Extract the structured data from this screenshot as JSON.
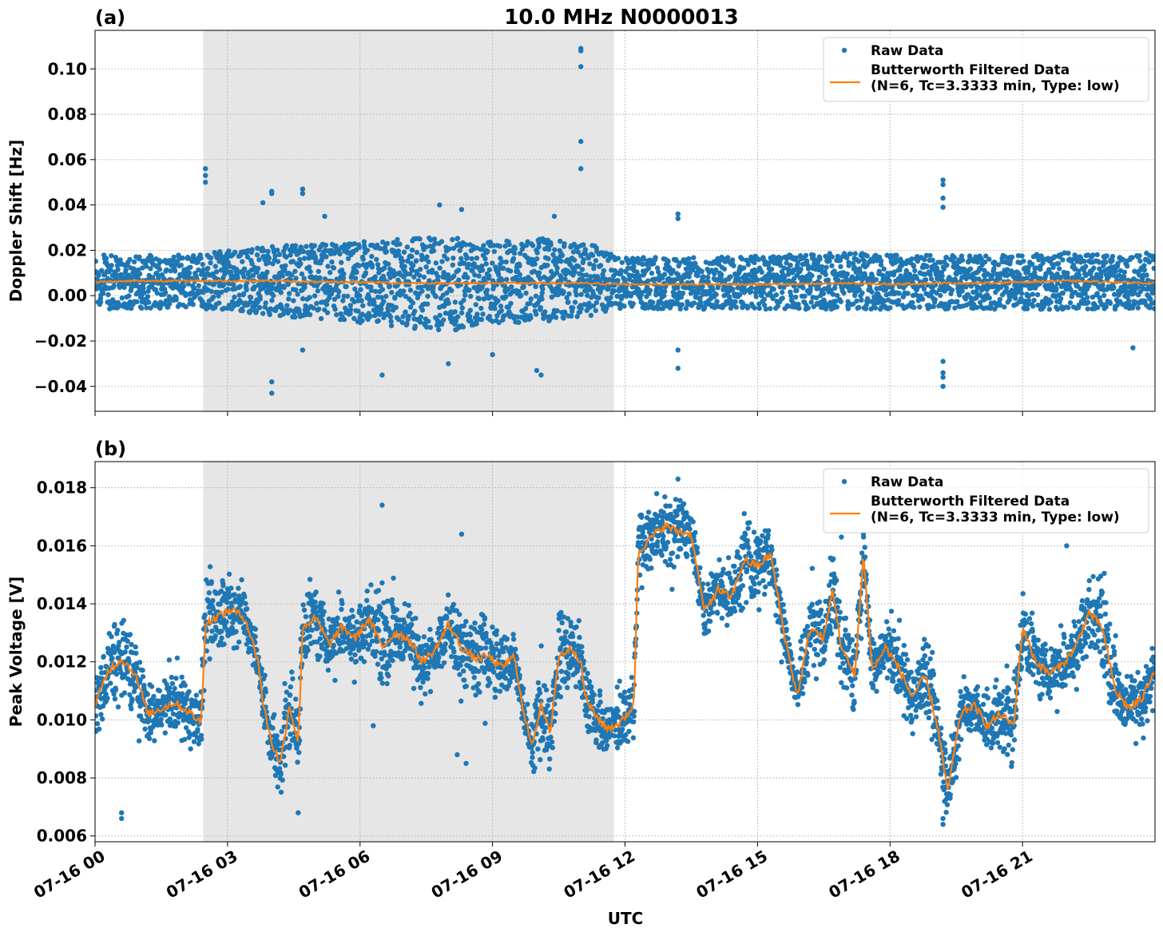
{
  "figure": {
    "title": "10.0 MHz N0000013",
    "xlabel": "UTC",
    "colors": {
      "raw": "#1f77b4",
      "filtered": "#ff7f0e",
      "shade": "#e6e6e6",
      "grid": "#b0b0b0"
    }
  },
  "chart_data": [
    {
      "type": "scatter",
      "panel_label": "(a)",
      "title": "10.0 MHz N0000013",
      "xlabel": "",
      "ylabel": "Doppler Shift [Hz]",
      "x_unit": "hours UTC on 07-16",
      "xlim": [
        0,
        24
      ],
      "ylim": [
        -0.051,
        0.117
      ],
      "x_ticks": [
        0,
        3,
        6,
        9,
        12,
        15,
        18,
        21
      ],
      "x_tick_labels": [
        "07-16 00",
        "07-16 03",
        "07-16 06",
        "07-16 09",
        "07-16 12",
        "07-16 15",
        "07-16 18",
        "07-16 21"
      ],
      "y_ticks": [
        -0.04,
        -0.02,
        0.0,
        0.02,
        0.04,
        0.06,
        0.08,
        0.1
      ],
      "y_tick_labels": [
        "−0.04",
        "−0.02",
        "0.00",
        "0.02",
        "0.04",
        "0.06",
        "0.08",
        "0.10"
      ],
      "grid": true,
      "shaded_region": [
        2.45,
        11.75
      ],
      "legend_position": "top-right",
      "legend": [
        {
          "label": "Raw Data",
          "kind": "marker"
        },
        {
          "label": "Butterworth Filtered Data",
          "label2": "(N=6, Tc=3.3333 min, Type: low)",
          "kind": "line"
        }
      ],
      "raw_band": {
        "x": [
          0,
          1,
          2,
          2.45,
          3,
          4,
          5,
          6,
          7,
          8,
          9,
          10,
          11,
          11.75,
          12,
          13,
          14,
          15,
          16,
          17,
          18,
          19,
          20,
          21,
          22,
          23,
          24
        ],
        "upper": [
          0.018,
          0.018,
          0.018,
          0.019,
          0.02,
          0.022,
          0.023,
          0.024,
          0.025,
          0.026,
          0.024,
          0.026,
          0.025,
          0.018,
          0.017,
          0.017,
          0.017,
          0.018,
          0.018,
          0.019,
          0.018,
          0.018,
          0.018,
          0.018,
          0.019,
          0.018,
          0.019
        ],
        "lower": [
          -0.006,
          -0.006,
          -0.005,
          -0.006,
          -0.006,
          -0.009,
          -0.01,
          -0.012,
          -0.014,
          -0.016,
          -0.012,
          -0.012,
          -0.01,
          -0.006,
          -0.006,
          -0.006,
          -0.006,
          -0.006,
          -0.006,
          -0.006,
          -0.006,
          -0.006,
          -0.006,
          -0.006,
          -0.006,
          -0.006,
          -0.006
        ]
      },
      "outliers": [
        [
          2.5,
          0.056
        ],
        [
          2.5,
          0.053
        ],
        [
          2.5,
          0.05
        ],
        [
          3.8,
          0.041
        ],
        [
          4.0,
          0.046
        ],
        [
          4.0,
          0.045
        ],
        [
          4.7,
          0.047
        ],
        [
          4.7,
          0.045
        ],
        [
          4.0,
          -0.038
        ],
        [
          4.0,
          -0.043
        ],
        [
          4.7,
          -0.024
        ],
        [
          6.5,
          -0.035
        ],
        [
          8.0,
          -0.03
        ],
        [
          9.0,
          -0.026
        ],
        [
          10.0,
          -0.033
        ],
        [
          10.1,
          -0.035
        ],
        [
          11.0,
          0.109
        ],
        [
          11.0,
          0.108
        ],
        [
          11.0,
          0.101
        ],
        [
          11.0,
          0.068
        ],
        [
          11.0,
          0.056
        ],
        [
          13.2,
          0.036
        ],
        [
          13.2,
          0.034
        ],
        [
          13.2,
          -0.024
        ],
        [
          13.2,
          -0.032
        ],
        [
          19.2,
          0.051
        ],
        [
          19.2,
          0.049
        ],
        [
          19.2,
          0.043
        ],
        [
          19.2,
          0.039
        ],
        [
          19.2,
          -0.029
        ],
        [
          19.2,
          -0.034
        ],
        [
          19.2,
          -0.036
        ],
        [
          19.2,
          -0.04
        ],
        [
          23.5,
          -0.023
        ],
        [
          5.2,
          0.035
        ],
        [
          7.8,
          0.04
        ],
        [
          8.3,
          0.038
        ],
        [
          10.4,
          0.035
        ]
      ],
      "filtered_line": {
        "x": [
          0,
          1,
          2,
          3,
          4,
          5,
          6,
          7,
          8,
          9,
          10,
          11,
          12,
          13,
          14,
          15,
          16,
          17,
          18,
          19,
          20,
          21,
          22,
          23,
          24
        ],
        "y": [
          0.006,
          0.0065,
          0.0065,
          0.0065,
          0.0065,
          0.006,
          0.006,
          0.0055,
          0.0055,
          0.0055,
          0.0055,
          0.0055,
          0.005,
          0.005,
          0.005,
          0.005,
          0.005,
          0.0055,
          0.005,
          0.0055,
          0.0055,
          0.006,
          0.0065,
          0.006,
          0.0055
        ]
      }
    },
    {
      "type": "scatter",
      "panel_label": "(b)",
      "title": "",
      "xlabel": "UTC",
      "ylabel": "Peak Voltage [V]",
      "x_unit": "hours UTC on 07-16",
      "xlim": [
        0,
        24
      ],
      "ylim": [
        0.0058,
        0.0189
      ],
      "x_ticks": [
        0,
        3,
        6,
        9,
        12,
        15,
        18,
        21
      ],
      "x_tick_labels": [
        "07-16 00",
        "07-16 03",
        "07-16 06",
        "07-16 09",
        "07-16 12",
        "07-16 15",
        "07-16 18",
        "07-16 21"
      ],
      "y_ticks": [
        0.006,
        0.008,
        0.01,
        0.012,
        0.014,
        0.016,
        0.018
      ],
      "y_tick_labels": [
        "0.006",
        "0.008",
        "0.010",
        "0.012",
        "0.014",
        "0.016",
        "0.018"
      ],
      "grid": true,
      "shaded_region": [
        2.45,
        11.75
      ],
      "legend_position": "top-right",
      "legend": [
        {
          "label": "Raw Data",
          "kind": "marker"
        },
        {
          "label": "Butterworth Filtered Data",
          "label2": "(N=6, Tc=3.3333 min, Type: low)",
          "kind": "line"
        }
      ],
      "filtered_line": {
        "x": [
          0,
          0.3,
          0.6,
          0.9,
          1.2,
          1.5,
          1.8,
          2.1,
          2.4,
          2.5,
          2.8,
          3.1,
          3.4,
          3.7,
          3.8,
          4.0,
          4.2,
          4.4,
          4.6,
          4.7,
          5.0,
          5.3,
          5.6,
          5.9,
          6.2,
          6.5,
          6.8,
          7.1,
          7.4,
          7.7,
          8.0,
          8.3,
          8.6,
          8.9,
          9.2,
          9.5,
          9.7,
          9.9,
          10.1,
          10.3,
          10.5,
          10.8,
          11.0,
          11.1,
          11.3,
          11.6,
          11.9,
          12.2,
          12.3,
          12.6,
          12.9,
          13.2,
          13.5,
          13.8,
          14.1,
          14.4,
          14.7,
          15.0,
          15.3,
          15.6,
          15.9,
          16.2,
          16.5,
          16.7,
          16.9,
          17.2,
          17.4,
          17.6,
          17.9,
          18.2,
          18.5,
          18.8,
          19.1,
          19.3,
          19.6,
          19.9,
          20.2,
          20.5,
          20.8,
          21.0,
          21.3,
          21.6,
          21.9,
          22.2,
          22.5,
          22.8,
          23.1,
          23.4,
          23.7,
          24.0
        ],
        "y": [
          0.0105,
          0.0117,
          0.0121,
          0.0116,
          0.0102,
          0.0104,
          0.0106,
          0.0103,
          0.0099,
          0.0133,
          0.0136,
          0.0138,
          0.0135,
          0.012,
          0.0106,
          0.0092,
          0.0085,
          0.0105,
          0.0092,
          0.0132,
          0.0135,
          0.0126,
          0.0132,
          0.0128,
          0.0135,
          0.0125,
          0.013,
          0.0128,
          0.012,
          0.0124,
          0.0133,
          0.0125,
          0.0121,
          0.0122,
          0.0118,
          0.0122,
          0.0102,
          0.0092,
          0.0105,
          0.0095,
          0.0122,
          0.0125,
          0.012,
          0.0108,
          0.0102,
          0.0097,
          0.0099,
          0.0105,
          0.0158,
          0.0163,
          0.0167,
          0.0165,
          0.0164,
          0.0137,
          0.0145,
          0.0142,
          0.0155,
          0.0153,
          0.0157,
          0.013,
          0.0108,
          0.0132,
          0.0128,
          0.0145,
          0.0125,
          0.0115,
          0.0157,
          0.0117,
          0.0125,
          0.0118,
          0.0108,
          0.0115,
          0.0096,
          0.0075,
          0.0102,
          0.0105,
          0.0098,
          0.0102,
          0.0098,
          0.0132,
          0.012,
          0.0116,
          0.0119,
          0.0125,
          0.0137,
          0.0132,
          0.011,
          0.0104,
          0.0107,
          0.0118
        ]
      },
      "raw_spread": 0.0011,
      "outliers": [
        [
          6.5,
          0.0174
        ],
        [
          8.3,
          0.0164
        ],
        [
          8.4,
          0.0085
        ],
        [
          8.2,
          0.0088
        ],
        [
          13.2,
          0.0183
        ],
        [
          19.2,
          0.0064
        ],
        [
          19.2,
          0.0066
        ],
        [
          0.6,
          0.0066
        ],
        [
          0.6,
          0.0068
        ],
        [
          4.6,
          0.0068
        ],
        [
          16.9,
          0.0163
        ],
        [
          17.4,
          0.0163
        ],
        [
          22.0,
          0.016
        ],
        [
          6.3,
          0.0098
        ]
      ]
    }
  ]
}
